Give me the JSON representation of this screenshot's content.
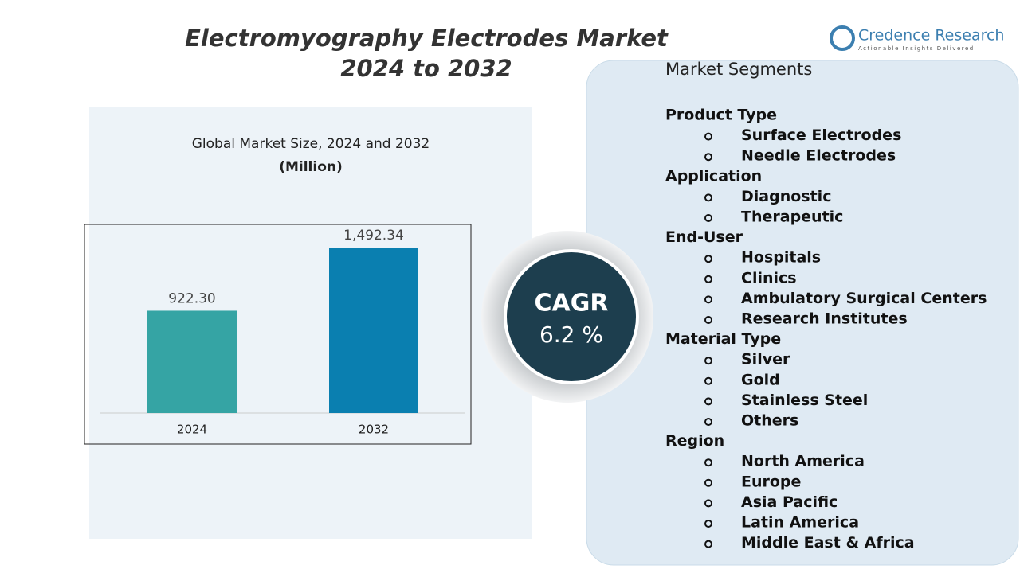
{
  "header": {
    "title_line1": "Electromyography Electrodes Market",
    "title_line2": "2024 to 2032"
  },
  "logo": {
    "name": "Credence Research",
    "tagline": "Actionable Insights Delivered"
  },
  "chart_data": {
    "type": "bar",
    "title": "Global Market Size, 2024 and 2032",
    "subtitle": "(Million)",
    "categories": [
      "2024",
      "2032"
    ],
    "values": [
      922.3,
      1492.34
    ],
    "value_labels": [
      "922.30",
      "1,492.34"
    ],
    "colors": [
      "#35a4a4",
      "#0a7fb0"
    ],
    "ylim": [
      0,
      1600
    ]
  },
  "cagr": {
    "label": "CAGR",
    "value": "6.2 %"
  },
  "segments": {
    "title": "Market Segments",
    "groups": [
      {
        "name": "Product Type",
        "items": [
          "Surface Electrodes",
          "Needle Electrodes"
        ]
      },
      {
        "name": "Application",
        "items": [
          "Diagnostic",
          "Therapeutic"
        ]
      },
      {
        "name": "End-User",
        "items": [
          "Hospitals",
          "Clinics",
          "Ambulatory Surgical Centers",
          "Research Institutes"
        ]
      },
      {
        "name": "Material Type",
        "items": [
          "Silver",
          "Gold",
          "Stainless Steel",
          "Others"
        ]
      },
      {
        "name": "Region",
        "items": [
          "North America",
          "Europe",
          "Asia Pacific",
          "Latin America",
          "Middle East & Africa"
        ]
      }
    ]
  }
}
